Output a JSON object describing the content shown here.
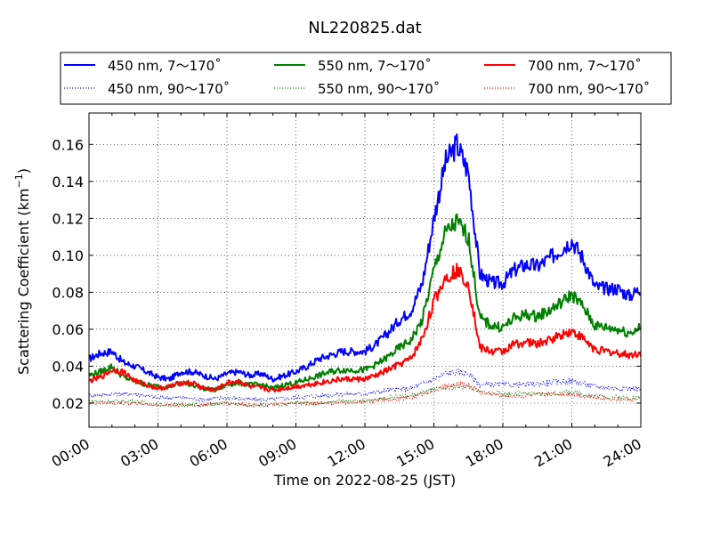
{
  "chart_data": {
    "type": "line",
    "title": "NL220825.dat",
    "xlabel": "Time on 2022-08-25 (JST)",
    "ylabel": "Scattering Coefficient (km",
    "ylabel_exp": "−1",
    "ylabel_close": ")",
    "xlim": [
      0,
      24
    ],
    "ylim": [
      0.007,
      0.177
    ],
    "grid": true,
    "legend_position": "top",
    "x_tick_values": [
      0,
      3,
      6,
      9,
      12,
      15,
      18,
      21,
      24
    ],
    "x_tick_labels": [
      "00:00",
      "03:00",
      "06:00",
      "09:00",
      "12:00",
      "15:00",
      "18:00",
      "21:00",
      "24:00"
    ],
    "y_tick_values": [
      0.02,
      0.04,
      0.06,
      0.08,
      0.1,
      0.12,
      0.14,
      0.16
    ],
    "y_tick_labels": [
      "0.02",
      "0.04",
      "0.06",
      "0.08",
      "0.10",
      "0.12",
      "0.14",
      "0.16"
    ],
    "series": [
      {
        "name": "450 nm, 7～170˚",
        "color": "#0000ff",
        "style": "solid",
        "x": [
          0,
          0.5,
          1,
          1.5,
          2,
          2.5,
          3,
          3.5,
          4,
          4.5,
          5,
          5.5,
          6,
          6.5,
          7,
          7.5,
          8,
          8.5,
          9,
          9.5,
          10,
          10.5,
          11,
          11.5,
          12,
          12.5,
          13,
          13.5,
          14,
          14.5,
          15,
          15.5,
          16,
          16.5,
          17,
          17.5,
          18,
          18.5,
          19,
          19.5,
          20,
          20.5,
          21,
          21.5,
          22,
          22.5,
          23,
          23.5,
          24
        ],
        "y": [
          0.044,
          0.047,
          0.048,
          0.042,
          0.04,
          0.037,
          0.034,
          0.033,
          0.037,
          0.037,
          0.035,
          0.033,
          0.036,
          0.037,
          0.035,
          0.036,
          0.033,
          0.035,
          0.037,
          0.04,
          0.044,
          0.046,
          0.048,
          0.048,
          0.048,
          0.052,
          0.058,
          0.065,
          0.07,
          0.085,
          0.12,
          0.15,
          0.16,
          0.145,
          0.09,
          0.085,
          0.085,
          0.092,
          0.095,
          0.094,
          0.098,
          0.103,
          0.108,
          0.098,
          0.083,
          0.082,
          0.082,
          0.078,
          0.082
        ]
      },
      {
        "name": "450 nm, 90～170˚",
        "color": "#0000ff",
        "style": "dotted",
        "x": [
          0,
          1,
          2,
          3,
          4,
          5,
          6,
          7,
          8,
          9,
          10,
          11,
          12,
          13,
          14,
          15,
          15.5,
          16,
          16.5,
          17,
          18,
          19,
          20,
          21,
          22,
          23,
          24
        ],
        "y": [
          0.024,
          0.025,
          0.025,
          0.023,
          0.023,
          0.022,
          0.023,
          0.022,
          0.022,
          0.023,
          0.024,
          0.025,
          0.025,
          0.027,
          0.028,
          0.033,
          0.036,
          0.037,
          0.036,
          0.03,
          0.03,
          0.03,
          0.031,
          0.032,
          0.029,
          0.028,
          0.028
        ]
      },
      {
        "name": "550 nm, 7～170˚",
        "color": "#008000",
        "style": "solid",
        "x": [
          0,
          0.5,
          1,
          1.5,
          2,
          2.5,
          3,
          3.5,
          4,
          4.5,
          5,
          5.5,
          6,
          6.5,
          7,
          7.5,
          8,
          8.5,
          9,
          9.5,
          10,
          10.5,
          11,
          11.5,
          12,
          12.5,
          13,
          13.5,
          14,
          14.5,
          15,
          15.5,
          16,
          16.5,
          17,
          17.5,
          18,
          18.5,
          19,
          19.5,
          20,
          20.5,
          21,
          21.5,
          22,
          22.5,
          23,
          23.5,
          24
        ],
        "y": [
          0.035,
          0.037,
          0.04,
          0.034,
          0.032,
          0.03,
          0.029,
          0.029,
          0.031,
          0.03,
          0.028,
          0.027,
          0.03,
          0.031,
          0.03,
          0.03,
          0.028,
          0.03,
          0.031,
          0.033,
          0.035,
          0.037,
          0.038,
          0.038,
          0.038,
          0.041,
          0.045,
          0.05,
          0.054,
          0.065,
          0.092,
          0.112,
          0.118,
          0.11,
          0.066,
          0.062,
          0.061,
          0.066,
          0.068,
          0.067,
          0.07,
          0.074,
          0.079,
          0.072,
          0.062,
          0.061,
          0.06,
          0.058,
          0.061
        ]
      },
      {
        "name": "550 nm, 90～170˚",
        "color": "#008000",
        "style": "dotted",
        "x": [
          0,
          1,
          2,
          3,
          4,
          5,
          6,
          7,
          8,
          9,
          10,
          11,
          12,
          13,
          14,
          15,
          15.5,
          16,
          16.5,
          17,
          18,
          19,
          20,
          21,
          22,
          23,
          24
        ],
        "y": [
          0.021,
          0.021,
          0.021,
          0.019,
          0.019,
          0.019,
          0.02,
          0.019,
          0.019,
          0.02,
          0.02,
          0.021,
          0.021,
          0.023,
          0.024,
          0.027,
          0.028,
          0.029,
          0.029,
          0.026,
          0.025,
          0.025,
          0.025,
          0.026,
          0.024,
          0.023,
          0.023
        ]
      },
      {
        "name": "700 nm, 7～170˚",
        "color": "#ff0000",
        "style": "solid",
        "x": [
          0,
          0.5,
          1,
          1.5,
          2,
          2.5,
          3,
          3.5,
          4,
          4.5,
          5,
          5.5,
          6,
          6.5,
          7,
          7.5,
          8,
          8.5,
          9,
          9.5,
          10,
          10.5,
          11,
          11.5,
          12,
          12.5,
          13,
          13.5,
          14,
          14.5,
          15,
          15.5,
          16,
          16.5,
          17,
          17.5,
          18,
          18.5,
          19,
          19.5,
          20,
          20.5,
          21,
          21.5,
          22,
          22.5,
          23,
          23.5,
          24
        ],
        "y": [
          0.032,
          0.034,
          0.038,
          0.037,
          0.032,
          0.03,
          0.028,
          0.029,
          0.031,
          0.031,
          0.028,
          0.027,
          0.031,
          0.032,
          0.029,
          0.028,
          0.027,
          0.028,
          0.029,
          0.03,
          0.031,
          0.032,
          0.033,
          0.033,
          0.033,
          0.035,
          0.038,
          0.041,
          0.044,
          0.055,
          0.075,
          0.088,
          0.092,
          0.085,
          0.05,
          0.048,
          0.048,
          0.052,
          0.053,
          0.052,
          0.054,
          0.057,
          0.059,
          0.055,
          0.049,
          0.048,
          0.047,
          0.046,
          0.047
        ]
      },
      {
        "name": "700 nm, 90～170˚",
        "color": "#ff0000",
        "style": "dotted",
        "x": [
          0,
          1,
          2,
          3,
          4,
          5,
          6,
          7,
          8,
          9,
          10,
          11,
          12,
          13,
          14,
          15,
          15.5,
          16,
          16.5,
          17,
          18,
          19,
          20,
          21,
          22,
          23,
          24
        ],
        "y": [
          0.02,
          0.02,
          0.02,
          0.019,
          0.019,
          0.019,
          0.02,
          0.019,
          0.019,
          0.02,
          0.02,
          0.02,
          0.021,
          0.022,
          0.023,
          0.027,
          0.029,
          0.03,
          0.03,
          0.026,
          0.024,
          0.024,
          0.025,
          0.025,
          0.023,
          0.022,
          0.022
        ]
      }
    ]
  }
}
